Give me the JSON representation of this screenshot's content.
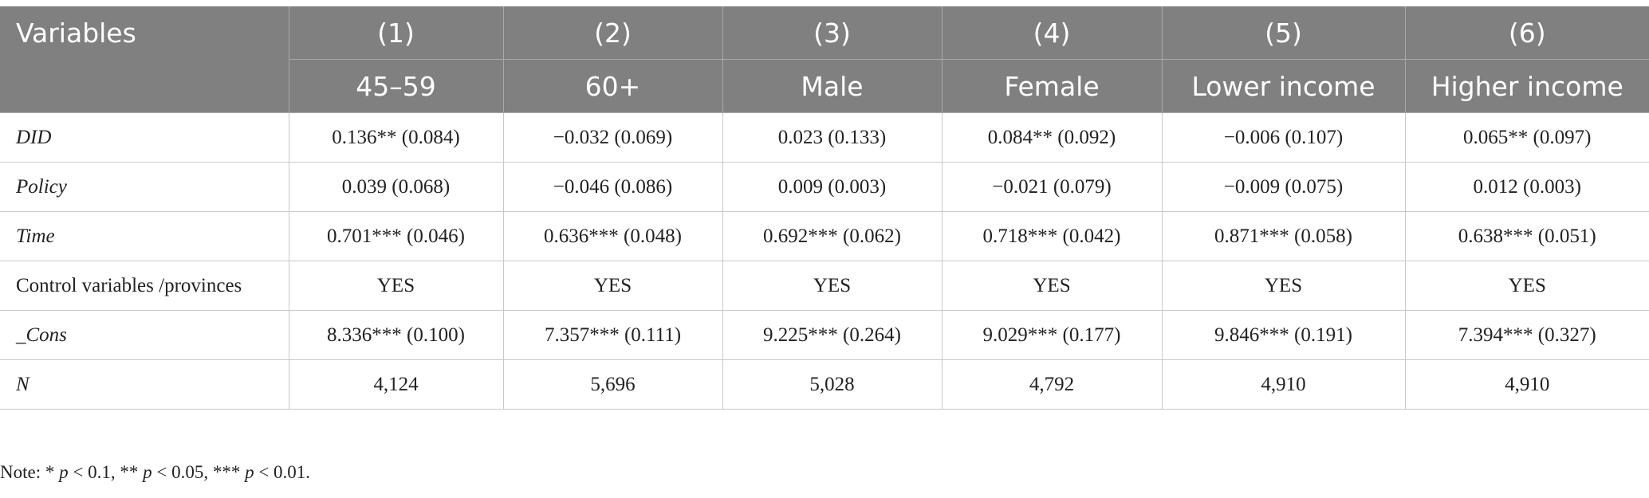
{
  "table": {
    "header_variables": "Variables",
    "column_numbers": [
      "(1)",
      "(2)",
      "(3)",
      "(4)",
      "(5)",
      "(6)"
    ],
    "column_groups": [
      "45–59",
      "60+",
      "Male",
      "Female",
      "Lower income",
      "Higher income"
    ],
    "rows": [
      {
        "label": "DID",
        "italic": true,
        "cells": [
          "0.136** (0.084)",
          "−0.032 (0.069)",
          "0.023 (0.133)",
          "0.084** (0.092)",
          "−0.006 (0.107)",
          "0.065** (0.097)"
        ]
      },
      {
        "label": "Policy",
        "italic": true,
        "cells": [
          "0.039 (0.068)",
          "−0.046 (0.086)",
          "0.009 (0.003)",
          "−0.021 (0.079)",
          "−0.009 (0.075)",
          "0.012 (0.003)"
        ]
      },
      {
        "label": "Time",
        "italic": true,
        "cells": [
          "0.701*** (0.046)",
          "0.636*** (0.048)",
          "0.692*** (0.062)",
          "0.718*** (0.042)",
          "0.871*** (0.058)",
          "0.638*** (0.051)"
        ]
      },
      {
        "label": "Control variables /provinces",
        "italic": false,
        "cells": [
          "YES",
          "YES",
          "YES",
          "YES",
          "YES",
          "YES"
        ]
      },
      {
        "label": "_Cons",
        "italic": true,
        "cells": [
          "8.336*** (0.100)",
          "7.357*** (0.111)",
          "9.225*** (0.264)",
          "9.029*** (0.177)",
          "9.846*** (0.191)",
          "7.394*** (0.327)"
        ]
      },
      {
        "label": "N",
        "italic": true,
        "cells": [
          "4,124",
          "5,696",
          "5,028",
          "4,792",
          "4,910",
          "4,910"
        ]
      }
    ]
  },
  "note": {
    "prefix": "Note: * ",
    "p1": "p",
    "t1": " < 0.1, ** ",
    "p2": "p",
    "t2": " < 0.05, *** ",
    "p3": "p",
    "t3": " < 0.01."
  }
}
